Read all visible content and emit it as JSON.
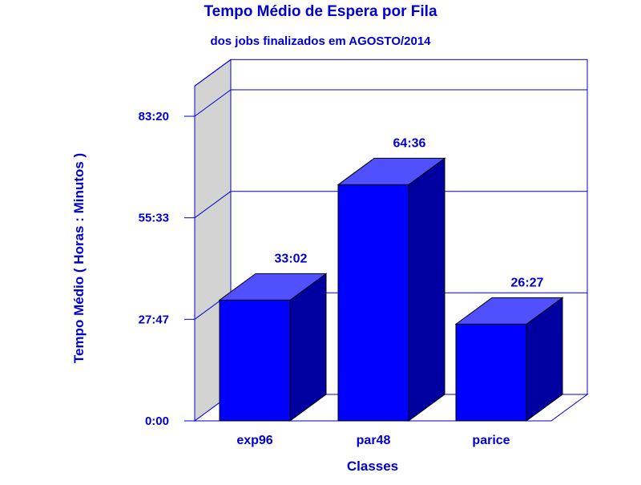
{
  "colors": {
    "text": "#0000CC",
    "axis": "#0000CC",
    "bar_front": "#0000FF",
    "bar_top": "#5050FF",
    "bar_side": "#0000A0",
    "left_wall": "#D3D3D3",
    "background": "#FFFFFF"
  },
  "chart_data": {
    "type": "bar",
    "title": "Tempo Médio de Espera por Fila",
    "subtitle": "dos jobs finalizados em AGOSTO/2014",
    "xlabel": "Classes",
    "ylabel": "Tempo Médio ( Horas : Minutos )",
    "categories": [
      "exp96",
      "par48",
      "parice"
    ],
    "values": [
      33.0333,
      64.6,
      26.45
    ],
    "value_labels": [
      "33:02",
      "64:36",
      "26:27"
    ],
    "ylim": [
      0,
      91.6
    ],
    "yticks": [
      0,
      27.7833,
      55.55,
      83.3333
    ],
    "ytick_labels": [
      "0:00",
      "27:47",
      "55:33",
      "83:20"
    ],
    "grid": true,
    "three_d": true
  }
}
